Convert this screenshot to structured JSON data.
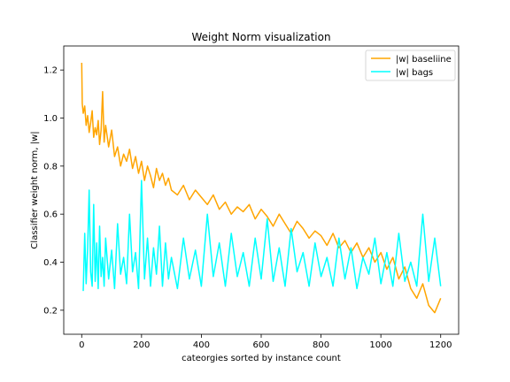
{
  "chart_data": {
    "type": "line",
    "title": "Weight Norm visualization",
    "xlabel": "cateorgies sorted by instance count",
    "ylabel": "Classifier weight norm, |w|",
    "xlim": [
      -60,
      1260
    ],
    "ylim": [
      0.1,
      1.3
    ],
    "xticks": [
      0,
      200,
      400,
      600,
      800,
      1000,
      1200
    ],
    "xtick_labels": [
      "0",
      "200",
      "400",
      "600",
      "800",
      "1000",
      "1200"
    ],
    "yticks": [
      0.2,
      0.4,
      0.6,
      0.8,
      1.0,
      1.2
    ],
    "ytick_labels": [
      "0.2",
      "0.4",
      "0.6",
      "0.8",
      "1.0",
      "1.2"
    ],
    "grid": false,
    "legend_position": "upper-right",
    "series": [
      {
        "name": "|w| baseliine",
        "color": "#FFA500",
        "x": [
          0,
          2,
          5,
          10,
          15,
          20,
          25,
          30,
          35,
          40,
          45,
          50,
          55,
          60,
          65,
          70,
          75,
          80,
          90,
          100,
          110,
          120,
          130,
          140,
          150,
          160,
          170,
          180,
          190,
          200,
          210,
          220,
          230,
          240,
          250,
          260,
          270,
          280,
          290,
          300,
          320,
          340,
          360,
          380,
          400,
          420,
          440,
          460,
          480,
          500,
          520,
          540,
          560,
          580,
          600,
          620,
          640,
          660,
          680,
          700,
          720,
          740,
          760,
          780,
          800,
          820,
          840,
          860,
          880,
          900,
          920,
          940,
          960,
          980,
          1000,
          1020,
          1040,
          1060,
          1080,
          1100,
          1120,
          1140,
          1160,
          1180,
          1200
        ],
        "y": [
          1.23,
          1.06,
          1.02,
          1.05,
          0.97,
          1.01,
          0.94,
          0.98,
          1.03,
          0.92,
          0.96,
          0.93,
          0.99,
          0.89,
          0.95,
          1.11,
          0.9,
          0.97,
          0.88,
          0.95,
          0.84,
          0.88,
          0.8,
          0.85,
          0.82,
          0.87,
          0.79,
          0.84,
          0.77,
          0.82,
          0.74,
          0.8,
          0.76,
          0.71,
          0.79,
          0.74,
          0.77,
          0.72,
          0.75,
          0.7,
          0.68,
          0.72,
          0.66,
          0.7,
          0.67,
          0.64,
          0.68,
          0.62,
          0.65,
          0.6,
          0.63,
          0.61,
          0.64,
          0.58,
          0.62,
          0.59,
          0.55,
          0.6,
          0.56,
          0.52,
          0.57,
          0.54,
          0.5,
          0.53,
          0.51,
          0.47,
          0.52,
          0.46,
          0.49,
          0.44,
          0.48,
          0.42,
          0.46,
          0.4,
          0.44,
          0.37,
          0.42,
          0.33,
          0.38,
          0.29,
          0.25,
          0.31,
          0.22,
          0.19,
          0.25
        ]
      },
      {
        "name": "|w| bags",
        "color": "#00FFFF",
        "x": [
          5,
          10,
          15,
          20,
          25,
          30,
          35,
          40,
          45,
          50,
          55,
          60,
          65,
          70,
          75,
          80,
          90,
          100,
          110,
          120,
          130,
          140,
          150,
          160,
          170,
          180,
          190,
          200,
          210,
          220,
          230,
          240,
          250,
          260,
          270,
          280,
          290,
          300,
          320,
          340,
          360,
          380,
          400,
          420,
          440,
          460,
          480,
          500,
          520,
          540,
          560,
          580,
          600,
          620,
          640,
          660,
          680,
          700,
          720,
          740,
          760,
          780,
          800,
          820,
          840,
          860,
          880,
          900,
          920,
          940,
          960,
          980,
          1000,
          1020,
          1040,
          1060,
          1080,
          1100,
          1120,
          1140,
          1160,
          1180,
          1200
        ],
        "y": [
          0.28,
          0.52,
          0.31,
          0.46,
          0.7,
          0.36,
          0.3,
          0.64,
          0.32,
          0.48,
          0.29,
          0.55,
          0.34,
          0.42,
          0.3,
          0.5,
          0.33,
          0.45,
          0.29,
          0.56,
          0.35,
          0.42,
          0.31,
          0.6,
          0.36,
          0.44,
          0.29,
          0.74,
          0.33,
          0.5,
          0.3,
          0.46,
          0.35,
          0.55,
          0.3,
          0.48,
          0.33,
          0.42,
          0.29,
          0.5,
          0.33,
          0.45,
          0.3,
          0.6,
          0.34,
          0.48,
          0.3,
          0.52,
          0.34,
          0.44,
          0.3,
          0.5,
          0.33,
          0.58,
          0.32,
          0.46,
          0.3,
          0.54,
          0.36,
          0.44,
          0.3,
          0.48,
          0.34,
          0.42,
          0.3,
          0.5,
          0.33,
          0.46,
          0.29,
          0.42,
          0.35,
          0.5,
          0.31,
          0.44,
          0.3,
          0.52,
          0.32,
          0.4,
          0.3,
          0.6,
          0.32,
          0.5,
          0.3
        ]
      }
    ]
  }
}
